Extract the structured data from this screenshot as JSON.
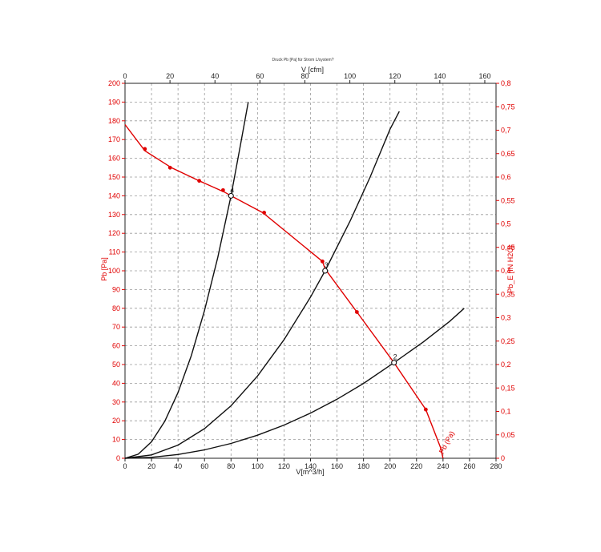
{
  "chart_data": {
    "type": "line",
    "title": "Druck Pb [Pa] für Strom L/system?",
    "x_bottom": {
      "label": "V[m^3/h]",
      "range": [
        0,
        280
      ],
      "ticks": [
        "0",
        "20",
        "40",
        "60",
        "80",
        "100",
        "120",
        "140",
        "160",
        "180",
        "200",
        "220",
        "240",
        "260",
        "280"
      ]
    },
    "x_top": {
      "label": "V [cfm]",
      "range": [
        0,
        165
      ],
      "ticks": [
        "0",
        "20",
        "40",
        "60",
        "80",
        "100",
        "120",
        "140",
        "160"
      ]
    },
    "y_left": {
      "label": "Pb [Pa]",
      "range": [
        0,
        200
      ],
      "ticks": [
        "0",
        "10",
        "20",
        "30",
        "40",
        "50",
        "60",
        "70",
        "80",
        "90",
        "100",
        "110",
        "120",
        "130",
        "140",
        "150",
        "160",
        "170",
        "180",
        "190",
        "200"
      ]
    },
    "y_right": {
      "label": "Pb_E [IN H2O]",
      "range": [
        0,
        0.8
      ],
      "ticks": [
        "0",
        "0,05",
        "0,1",
        "0,15",
        "0,2",
        "0,25",
        "0,3",
        "0,35",
        "0,4",
        "0,45",
        "0,5",
        "0,55",
        "0,6",
        "0,65",
        "0,7",
        "0,75",
        "0,8"
      ]
    },
    "grid": true,
    "fan_curve": {
      "name": "Pb (Pa)",
      "color": "#e00000",
      "x": [
        0,
        15,
        35,
        56,
        75,
        80,
        104,
        149,
        151,
        175,
        203,
        227,
        238,
        240
      ],
      "y": [
        178,
        164,
        155,
        148,
        142,
        140,
        131,
        105,
        101,
        78,
        51,
        26,
        6,
        0
      ],
      "measured": {
        "x": [
          15,
          34,
          56,
          74,
          105,
          149,
          175,
          227
        ],
        "y": [
          165,
          155,
          148,
          143,
          131,
          105,
          78,
          26
        ]
      }
    },
    "system_curves": [
      {
        "label": "4",
        "x": [
          0,
          10,
          20,
          30,
          40,
          50,
          60,
          70,
          80,
          87,
          93
        ],
        "y": [
          0,
          2.2,
          8.8,
          19.7,
          35,
          54.7,
          78.8,
          107.2,
          140,
          166.7,
          190
        ]
      },
      {
        "label": "3",
        "x": [
          0,
          20,
          40,
          60,
          80,
          100,
          120,
          140,
          151,
          170,
          185,
          200,
          207
        ],
        "y": [
          0,
          1.8,
          7,
          15.8,
          28,
          43.9,
          63.2,
          86,
          100,
          126.7,
          150,
          175.5,
          185
        ]
      },
      {
        "label": "2",
        "x": [
          0,
          20,
          40,
          60,
          80,
          100,
          120,
          140,
          160,
          180,
          203,
          225,
          245,
          256
        ],
        "y": [
          0,
          0.5,
          2,
          4.5,
          7.9,
          12.3,
          17.7,
          24.1,
          31.5,
          39.9,
          51,
          62,
          73,
          80
        ]
      }
    ],
    "operating_points": [
      {
        "label": "4",
        "x": 80,
        "y": 140
      },
      {
        "label": "3",
        "x": 151,
        "y": 100
      },
      {
        "label": "2",
        "x": 203,
        "y": 51
      }
    ],
    "curve_label": "Pb (Pa)"
  }
}
